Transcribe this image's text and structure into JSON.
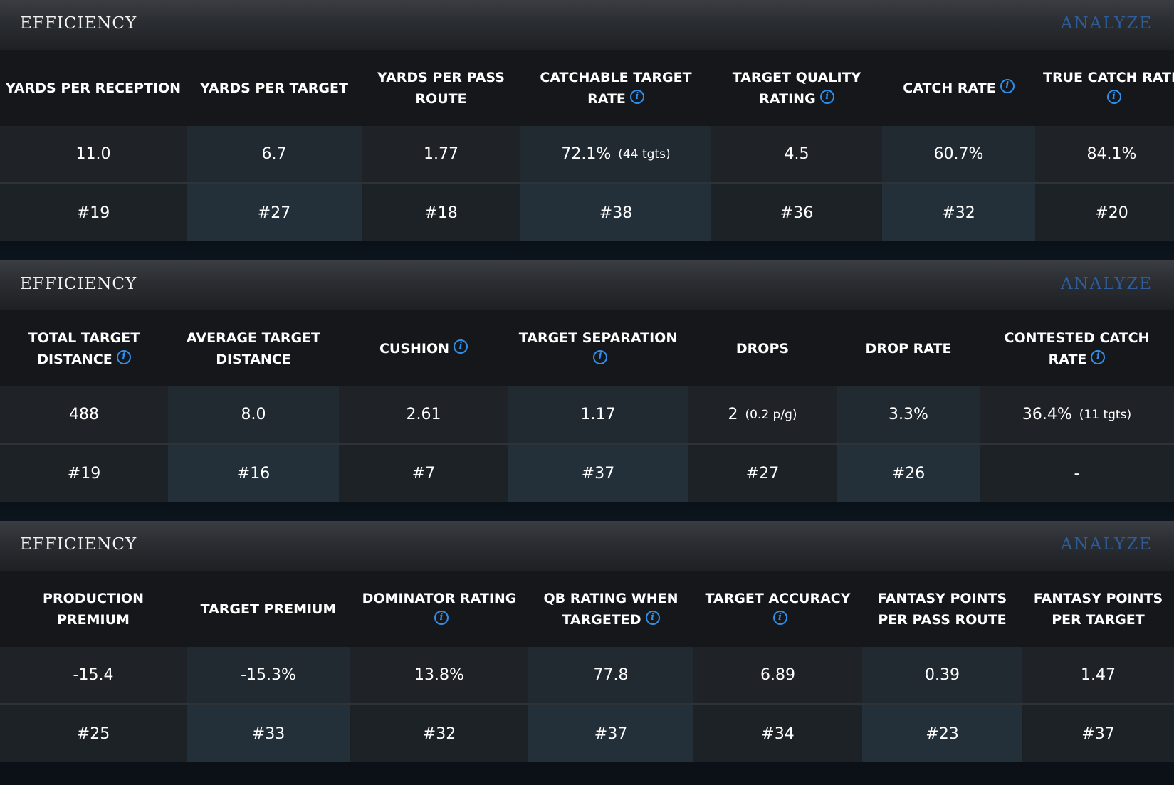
{
  "sections": [
    {
      "title": "EFFICIENCY",
      "analyze": "ANALYZE",
      "headers": [
        {
          "label": "YARDS PER RECEPTION",
          "info": false
        },
        {
          "label": "YARDS PER TARGET",
          "info": false
        },
        {
          "label": "YARDS PER PASS ROUTE",
          "info": false
        },
        {
          "label": "CATCHABLE TARGET RATE",
          "info": true
        },
        {
          "label": "TARGET QUALITY RATING",
          "info": true
        },
        {
          "label": "CATCH RATE",
          "info": true
        },
        {
          "label": "TRUE CATCH RATE",
          "info": true
        }
      ],
      "values": [
        {
          "main": "11.0",
          "sub": ""
        },
        {
          "main": "6.7",
          "sub": ""
        },
        {
          "main": "1.77",
          "sub": ""
        },
        {
          "main": "72.1%",
          "sub": "(44 tgts)"
        },
        {
          "main": "4.5",
          "sub": ""
        },
        {
          "main": "60.7%",
          "sub": ""
        },
        {
          "main": "84.1%",
          "sub": ""
        }
      ],
      "ranks": [
        "#19",
        "#27",
        "#18",
        "#38",
        "#36",
        "#32",
        "#20"
      ]
    },
    {
      "title": "EFFICIENCY",
      "analyze": "ANALYZE",
      "headers": [
        {
          "label": "TOTAL TARGET DISTANCE",
          "info": true
        },
        {
          "label": "AVERAGE TARGET DISTANCE",
          "info": false
        },
        {
          "label": "CUSHION",
          "info": true
        },
        {
          "label": "TARGET SEPARATION",
          "info": true
        },
        {
          "label": "DROPS",
          "info": false
        },
        {
          "label": "DROP RATE",
          "info": false
        },
        {
          "label": "CONTESTED CATCH RATE",
          "info": true
        }
      ],
      "values": [
        {
          "main": "488",
          "sub": ""
        },
        {
          "main": "8.0",
          "sub": ""
        },
        {
          "main": "2.61",
          "sub": ""
        },
        {
          "main": "1.17",
          "sub": ""
        },
        {
          "main": "2",
          "sub": "(0.2 p/g)"
        },
        {
          "main": "3.3%",
          "sub": ""
        },
        {
          "main": "36.4%",
          "sub": "(11 tgts)"
        }
      ],
      "ranks": [
        "#19",
        "#16",
        "#7",
        "#37",
        "#27",
        "#26",
        "-"
      ]
    },
    {
      "title": "EFFICIENCY",
      "analyze": "ANALYZE",
      "headers": [
        {
          "label": "PRODUCTION PREMIUM",
          "info": false
        },
        {
          "label": "TARGET PREMIUM",
          "info": false
        },
        {
          "label": "DOMINATOR RATING",
          "info": true
        },
        {
          "label": "QB RATING WHEN TARGETED",
          "info": true
        },
        {
          "label": "TARGET ACCURACY",
          "info": true
        },
        {
          "label": "FANTASY POINTS PER PASS ROUTE",
          "info": false
        },
        {
          "label": "FANTASY POINTS PER TARGET",
          "info": false
        }
      ],
      "values": [
        {
          "main": "-15.4",
          "sub": ""
        },
        {
          "main": "-15.3%",
          "sub": ""
        },
        {
          "main": "13.8%",
          "sub": ""
        },
        {
          "main": "77.8",
          "sub": ""
        },
        {
          "main": "6.89",
          "sub": ""
        },
        {
          "main": "0.39",
          "sub": ""
        },
        {
          "main": "1.47",
          "sub": ""
        }
      ],
      "ranks": [
        "#25",
        "#33",
        "#32",
        "#37",
        "#34",
        "#23",
        "#37"
      ]
    }
  ],
  "icons": {
    "info": "info-icon",
    "info_glyph": "i"
  },
  "colors": {
    "accent": "#2f8ee8",
    "analyze": "#2e5d9a",
    "header_bg": "#15171a"
  }
}
